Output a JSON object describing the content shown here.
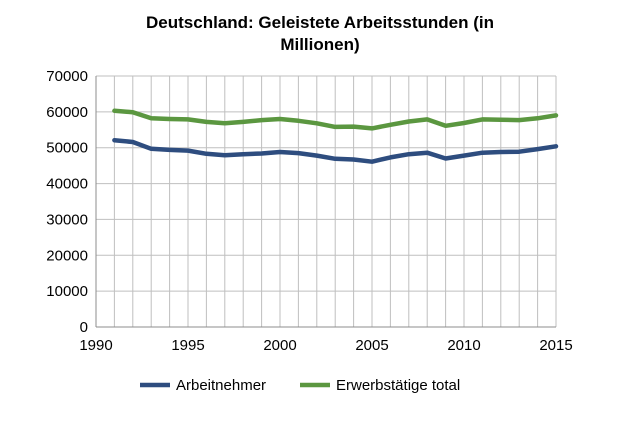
{
  "chart_data": {
    "type": "line",
    "title_line1": "Deutschland: Geleistete Arbeitsstunden (in",
    "title_line2": "Millionen)",
    "xlabel": "",
    "ylabel": "",
    "xlim": [
      1990,
      2015
    ],
    "ylim": [
      0,
      70000
    ],
    "x_ticks": [
      1990,
      1995,
      2000,
      2005,
      2010,
      2015
    ],
    "y_ticks": [
      0,
      10000,
      20000,
      30000,
      40000,
      50000,
      60000,
      70000
    ],
    "grid": true,
    "legend_position": "bottom",
    "x": [
      1991,
      1992,
      1993,
      1994,
      1995,
      1996,
      1997,
      1998,
      1999,
      2000,
      2001,
      2002,
      2003,
      2004,
      2005,
      2006,
      2007,
      2008,
      2009,
      2010,
      2011,
      2012,
      2013,
      2014,
      2015
    ],
    "series": [
      {
        "name": "Arbeitnehmer",
        "color": "#2e4d7f",
        "values": [
          52100,
          51600,
          49700,
          49400,
          49200,
          48300,
          47900,
          48200,
          48400,
          48800,
          48500,
          47800,
          46900,
          46700,
          46100,
          47300,
          48200,
          48600,
          47000,
          47800,
          48600,
          48800,
          48900,
          49600,
          50400
        ]
      },
      {
        "name": "Erwerbstätige total",
        "color": "#5b9740",
        "values": [
          60300,
          59900,
          58200,
          58000,
          57900,
          57200,
          56800,
          57200,
          57700,
          58000,
          57500,
          56800,
          55800,
          55900,
          55400,
          56400,
          57300,
          57900,
          56100,
          56900,
          57900,
          57800,
          57700,
          58200,
          59000
        ]
      }
    ]
  }
}
